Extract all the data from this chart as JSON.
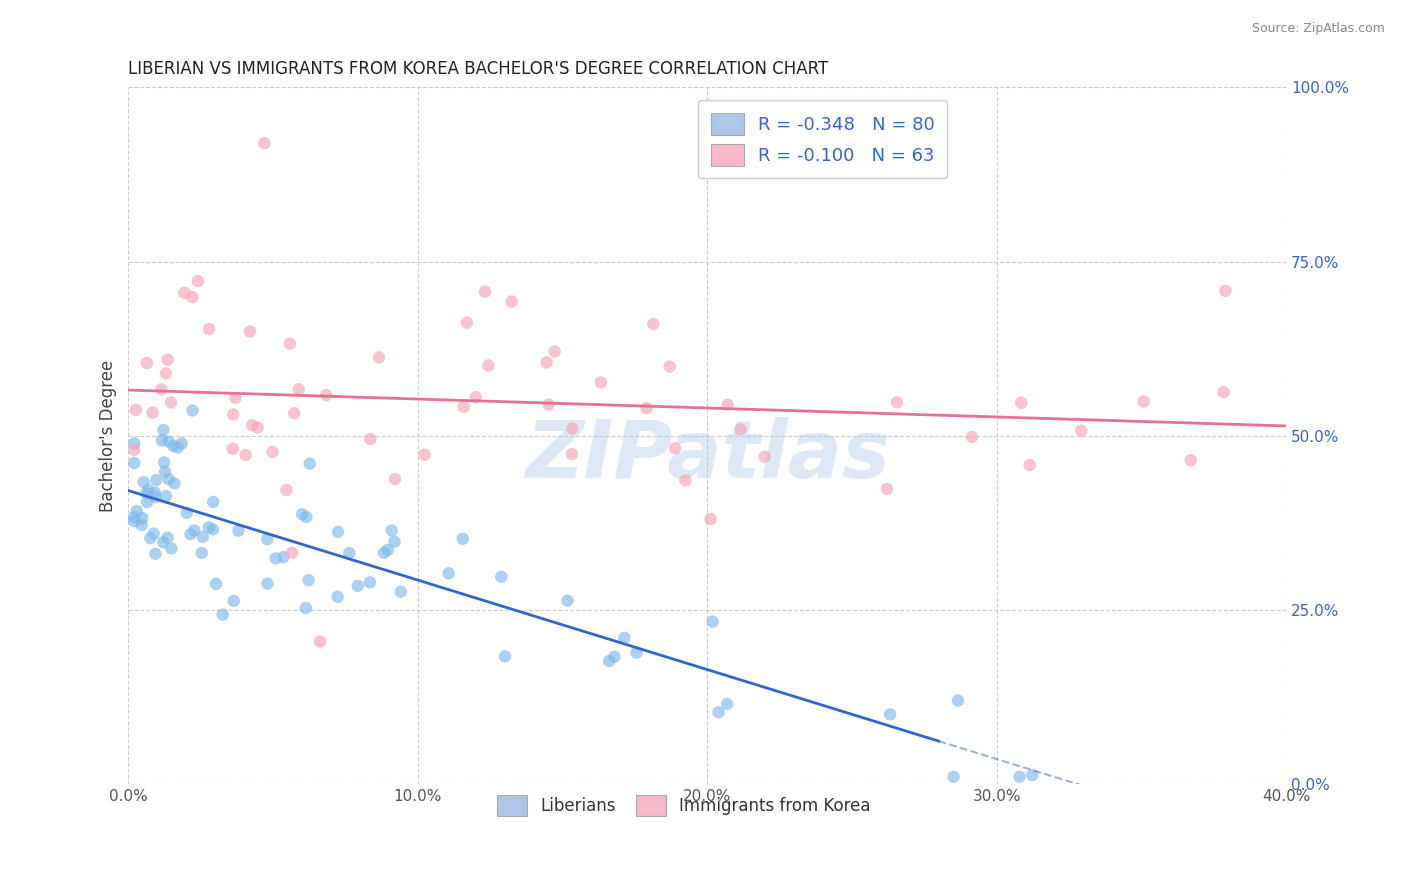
{
  "title": "LIBERIAN VS IMMIGRANTS FROM KOREA BACHELOR'S DEGREE CORRELATION CHART",
  "source": "Source: ZipAtlas.com",
  "ylabel": "Bachelor's Degree",
  "watermark": "ZIPatlas",
  "series1_color": "#7eb8e8",
  "series2_color": "#f4a3b5",
  "trendline1_color": "#3366cc",
  "trendline2_color": "#e87090",
  "background_color": "#ffffff",
  "grid_color": "#cccccc",
  "xlim": [
    0.0,
    0.4
  ],
  "ylim": [
    0.0,
    1.0
  ],
  "xticks": [
    0.0,
    0.1,
    0.2,
    0.3,
    0.4
  ],
  "yticks": [
    0.0,
    0.25,
    0.5,
    0.75,
    1.0
  ],
  "xticklabels": [
    "0.0%",
    "10.0%",
    "20.0%",
    "30.0%",
    "40.0%"
  ],
  "yticklabels": [
    "0.0%",
    "25.0%",
    "50.0%",
    "75.0%",
    "100.0%"
  ],
  "figsize": [
    14.06,
    8.92
  ],
  "dpi": 100,
  "legend1_R": "-0.348",
  "legend1_N": "80",
  "legend2_R": "-0.100",
  "legend2_N": "63",
  "legend1_facecolor": "#aec6e8",
  "legend2_facecolor": "#f4b8c8",
  "legend_text_color": "#3366cc",
  "label1": "Liberians",
  "label2": "Immigrants from Korea"
}
